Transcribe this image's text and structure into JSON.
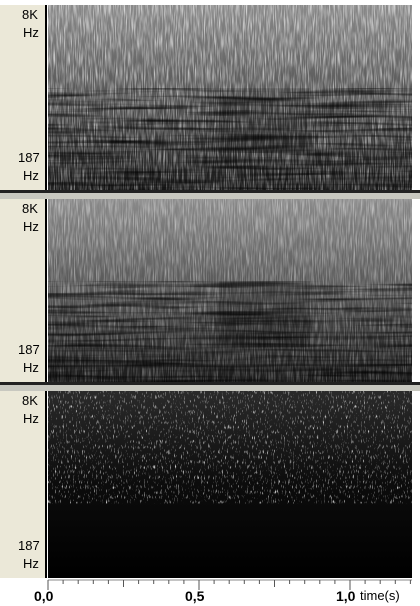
{
  "panels": [
    {
      "top_label": [
        "8K",
        "Hz"
      ],
      "bottom_label": [
        "187",
        "Hz"
      ]
    },
    {
      "top_label": [
        "8K",
        "Hz"
      ],
      "bottom_label": [
        "187",
        "Hz"
      ]
    },
    {
      "top_label": [
        "8K",
        "Hz"
      ],
      "bottom_label": [
        "187",
        "Hz"
      ]
    }
  ],
  "time_axis": {
    "ticks": [
      "0,0",
      "0,5",
      "1,0"
    ],
    "unit": "time(s)"
  }
}
